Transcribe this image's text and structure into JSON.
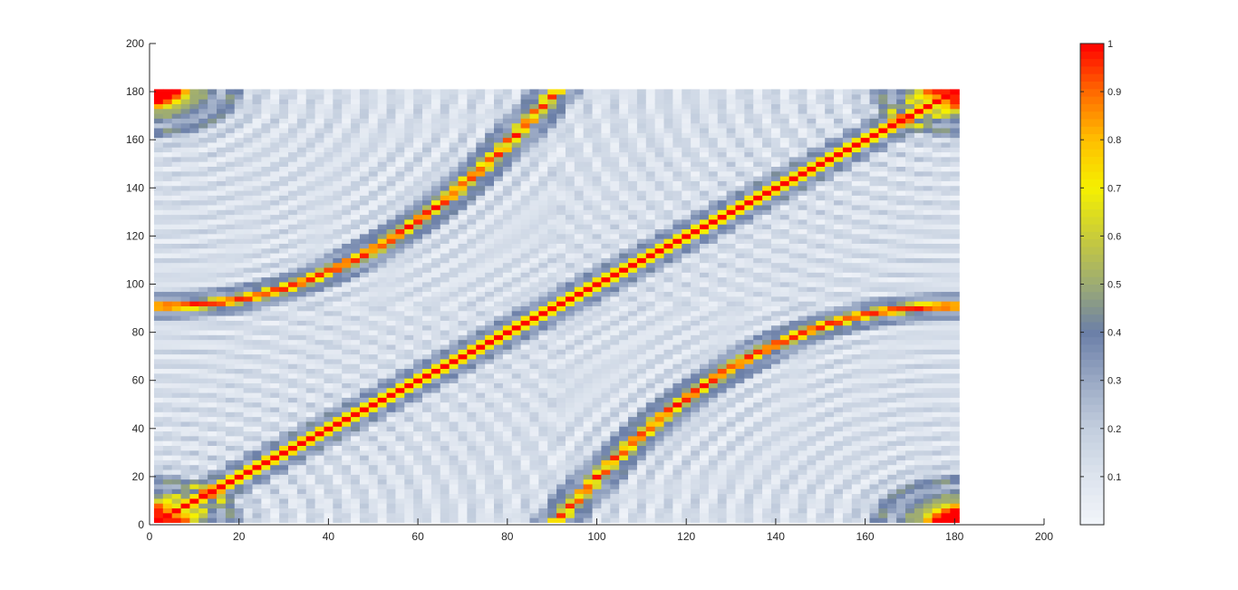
{
  "chart_data": {
    "type": "heatmap",
    "title": "",
    "xlabel": "",
    "ylabel": "",
    "xlim": [
      0,
      200
    ],
    "ylim": [
      0,
      200
    ],
    "x_ticks": [
      0,
      20,
      40,
      60,
      80,
      100,
      120,
      140,
      160,
      180,
      200
    ],
    "y_ticks": [
      0,
      20,
      40,
      60,
      80,
      100,
      120,
      140,
      160,
      180,
      200
    ],
    "grid": false,
    "data_extent": {
      "x": [
        1,
        181
      ],
      "y": [
        1,
        181
      ]
    },
    "value_range": [
      0,
      1
    ],
    "description_of_field": "Normalized intensity of a 2-D periodic field on a 181x181 grid; high-intensity (value 1) bands: the main diagonal from (1,1) to (181,181), an upper-left arc from (1,91) curving to (91,181), a lower-right arc from (91,1) curving to (181,91), and blobs in all four corners; background shows concentric low-amplitude (0.1-0.3) fringe rings.",
    "colorbar": {
      "position": "right",
      "range": [
        0,
        1
      ],
      "ticks": [
        0.1,
        0.2,
        0.3,
        0.4,
        0.5,
        0.6,
        0.7,
        0.8,
        0.9,
        1
      ],
      "tick_labels": [
        "0.1",
        "0.2",
        "0.3",
        "0.4",
        "0.5",
        "0.6",
        "0.7",
        "0.8",
        "0.9",
        "1"
      ],
      "colormap": [
        {
          "value": 0.0,
          "color": "#f2f5fa"
        },
        {
          "value": 0.1,
          "color": "#dde4ee"
        },
        {
          "value": 0.2,
          "color": "#c3cede"
        },
        {
          "value": 0.3,
          "color": "#9aa9c4"
        },
        {
          "value": 0.4,
          "color": "#6b7fa8"
        },
        {
          "value": 0.5,
          "color": "#9dab74"
        },
        {
          "value": 0.6,
          "color": "#c9cc3a"
        },
        {
          "value": 0.7,
          "color": "#f5f000"
        },
        {
          "value": 0.8,
          "color": "#ffbf00"
        },
        {
          "value": 0.9,
          "color": "#ff6a00"
        },
        {
          "value": 1.0,
          "color": "#ff0000"
        }
      ]
    }
  }
}
